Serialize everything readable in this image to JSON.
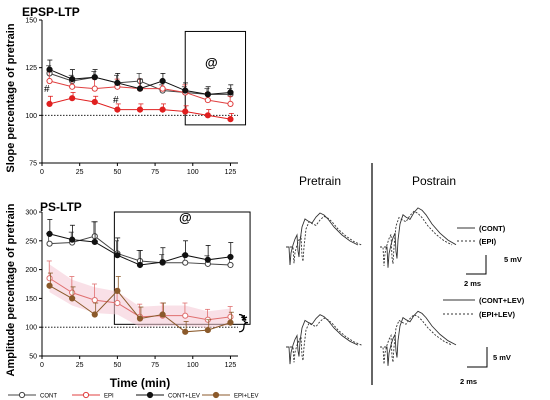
{
  "chart_data": [
    {
      "type": "line",
      "title": "EPSP-LTP",
      "ylabel": "Slope percentage of pretrain",
      "xlabel": "",
      "x": [
        5,
        20,
        35,
        50,
        65,
        80,
        95,
        110,
        125
      ],
      "xlim": [
        0,
        130
      ],
      "ylim": [
        75,
        150
      ],
      "xticks": [
        "0",
        "25",
        "50",
        "75",
        "100",
        "125"
      ],
      "yticks": [
        "75",
        "100",
        "125",
        "150"
      ],
      "baseline": 100,
      "series": [
        {
          "name": "CONT",
          "color": "#444444",
          "marker": "open-circle",
          "values": [
            122,
            118,
            120,
            117,
            118,
            113,
            112,
            111,
            111
          ],
          "err": [
            4,
            3,
            3,
            4,
            4,
            3,
            3,
            3,
            3
          ]
        },
        {
          "name": "EPI",
          "color": "#e04040",
          "marker": "open-circle",
          "values": [
            118,
            115,
            114,
            115,
            114,
            114,
            112,
            108,
            106
          ],
          "err": [
            5,
            4,
            5,
            4,
            5,
            4,
            4,
            4,
            4
          ]
        },
        {
          "name": "CONT+LEV",
          "color": "#111111",
          "marker": "filled-circle",
          "values": [
            124,
            119,
            120,
            117,
            114,
            118,
            113,
            111,
            112
          ],
          "err": [
            5,
            5,
            4,
            5,
            5,
            4,
            4,
            4,
            4
          ]
        },
        {
          "name": "EPI+LEV",
          "color": "#e02020",
          "marker": "filled-circle",
          "values": [
            106,
            109,
            107,
            103,
            103,
            103,
            102,
            100,
            98
          ],
          "err": [
            4,
            3,
            3,
            3,
            3,
            3,
            3,
            3,
            3
          ]
        }
      ],
      "annotations": [
        "#",
        "#",
        "@"
      ]
    },
    {
      "type": "line",
      "title": "PS-LTP",
      "ylabel": "Amplitude percentage of pretrain",
      "xlabel": "Time (min)",
      "x": [
        5,
        20,
        35,
        50,
        65,
        80,
        95,
        110,
        125
      ],
      "xlim": [
        0,
        130
      ],
      "ylim": [
        50,
        300
      ],
      "xticks": [
        "0",
        "25",
        "50",
        "75",
        "100",
        "125"
      ],
      "yticks": [
        "50",
        "100",
        "150",
        "200",
        "250",
        "300"
      ],
      "baseline": 100,
      "series": [
        {
          "name": "CONT",
          "color": "#444444",
          "marker": "open-circle",
          "values": [
            245,
            247,
            258,
            228,
            215,
            212,
            212,
            210,
            208
          ],
          "err": [
            18,
            18,
            25,
            22,
            18,
            14,
            14,
            14,
            14
          ]
        },
        {
          "name": "EPI",
          "color": "#e07070",
          "marker": "open-circle",
          "values": [
            185,
            160,
            147,
            142,
            118,
            120,
            120,
            113,
            118
          ],
          "err": [
            30,
            28,
            28,
            25,
            22,
            22,
            22,
            18,
            18
          ]
        },
        {
          "name": "CONT+LEV",
          "color": "#111111",
          "marker": "filled-circle",
          "values": [
            262,
            252,
            248,
            225,
            208,
            213,
            225,
            217,
            222
          ],
          "err": [
            25,
            25,
            35,
            30,
            25,
            25,
            25,
            25,
            25
          ]
        },
        {
          "name": "EPI+LEV",
          "color": "#8b5a2b",
          "marker": "filled-circle",
          "values": [
            172,
            150,
            122,
            163,
            115,
            122,
            92,
            95,
            108
          ],
          "err": [
            22,
            20,
            20,
            25,
            20,
            20,
            18,
            18,
            18
          ]
        }
      ],
      "annotations": [
        "@",
        "*"
      ]
    }
  ],
  "legend": {
    "items": [
      {
        "label": "CONT",
        "color": "#444444",
        "marker": "open"
      },
      {
        "label": "EPI",
        "color": "#e04040",
        "marker": "open"
      },
      {
        "label": "CONT+LEV",
        "color": "#111111",
        "marker": "filled"
      },
      {
        "label": "EPI+LEV",
        "color": "#8b5a2b",
        "marker": "filled"
      }
    ]
  },
  "traces": {
    "col_pretrain": "Pretrain",
    "col_postrain": "Postrain",
    "label_cont": "(CONT)",
    "label_epi": "(EPI)",
    "label_cont_lev": "(CONT+LEV)",
    "label_epi_lev": "(EPI+LEV)",
    "scale_mv": "5 mV",
    "scale_ms": "2 ms"
  },
  "marks": {
    "hash": "#",
    "at": "@",
    "star": "*"
  }
}
